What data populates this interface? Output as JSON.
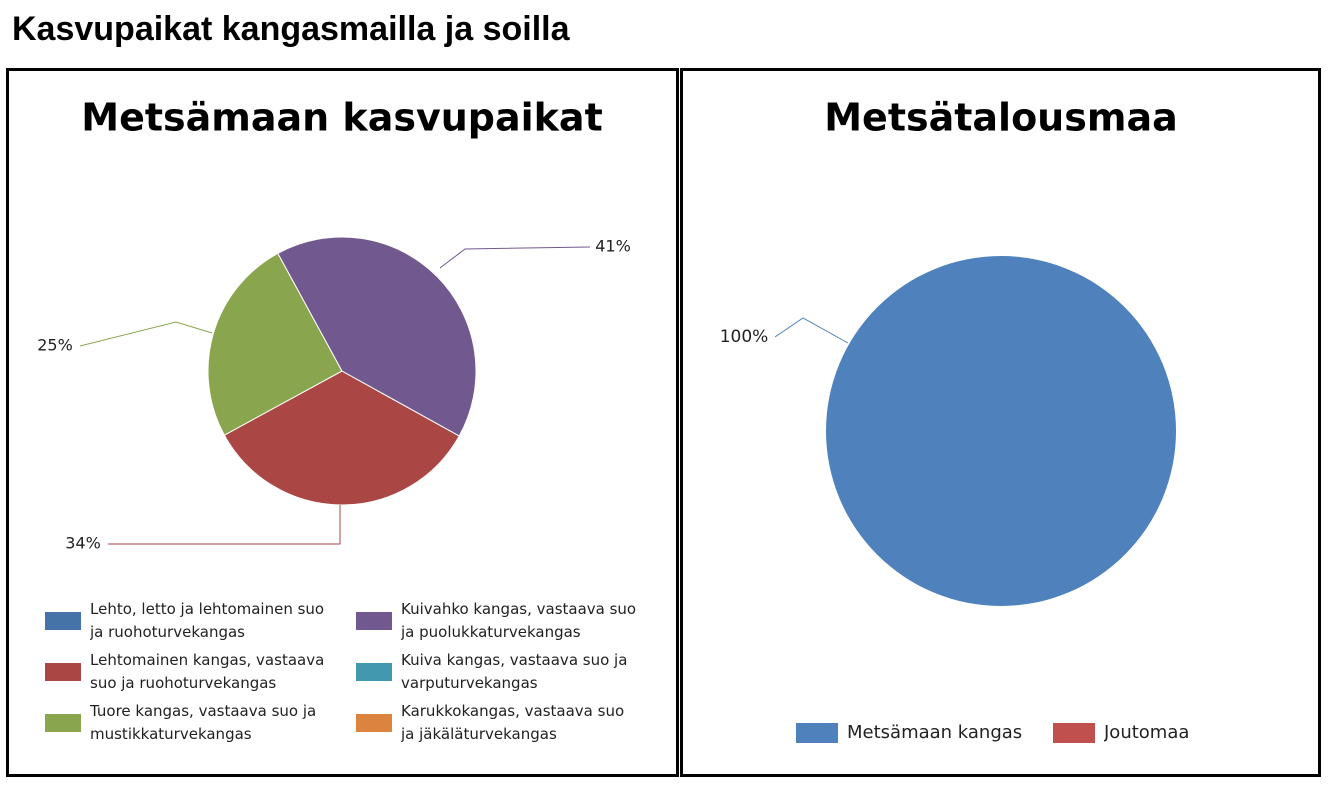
{
  "title": "Kasvupaikat kangasmailla ja soilla",
  "chart_data": [
    {
      "type": "pie",
      "title": "Metsämaan kasvupaikat",
      "categories": [
        "Lehto, letto ja lehtomainen suo ja ruohoturvekangas",
        "Lehtomainen kangas, vastaava suo ja ruohoturvekangas",
        "Tuore kangas, vastaava suo ja mustikkaturvekangas",
        "Kuivahko kangas, vastaava suo ja puolukkaturvekangas",
        "Kuiva kangas, vastaava suo ja varputurvekangas",
        "Karukkokangas, vastaava suo ja jäkäläturvekangas"
      ],
      "values": [
        0,
        34,
        25,
        41,
        0,
        0
      ],
      "value_labels": [
        null,
        "34%",
        "25%",
        "41%",
        null,
        null
      ],
      "colors": [
        "#4572a7",
        "#aa4643",
        "#89a54e",
        "#71588f",
        "#4198af",
        "#db843d"
      ]
    },
    {
      "type": "pie",
      "title": "Metsätalousmaa",
      "categories": [
        "Metsämaan kangas",
        "Joutomaa"
      ],
      "values": [
        100,
        0
      ],
      "value_labels": [
        "100%",
        null
      ],
      "colors": [
        "#4f81bd",
        "#c0504d"
      ]
    }
  ]
}
